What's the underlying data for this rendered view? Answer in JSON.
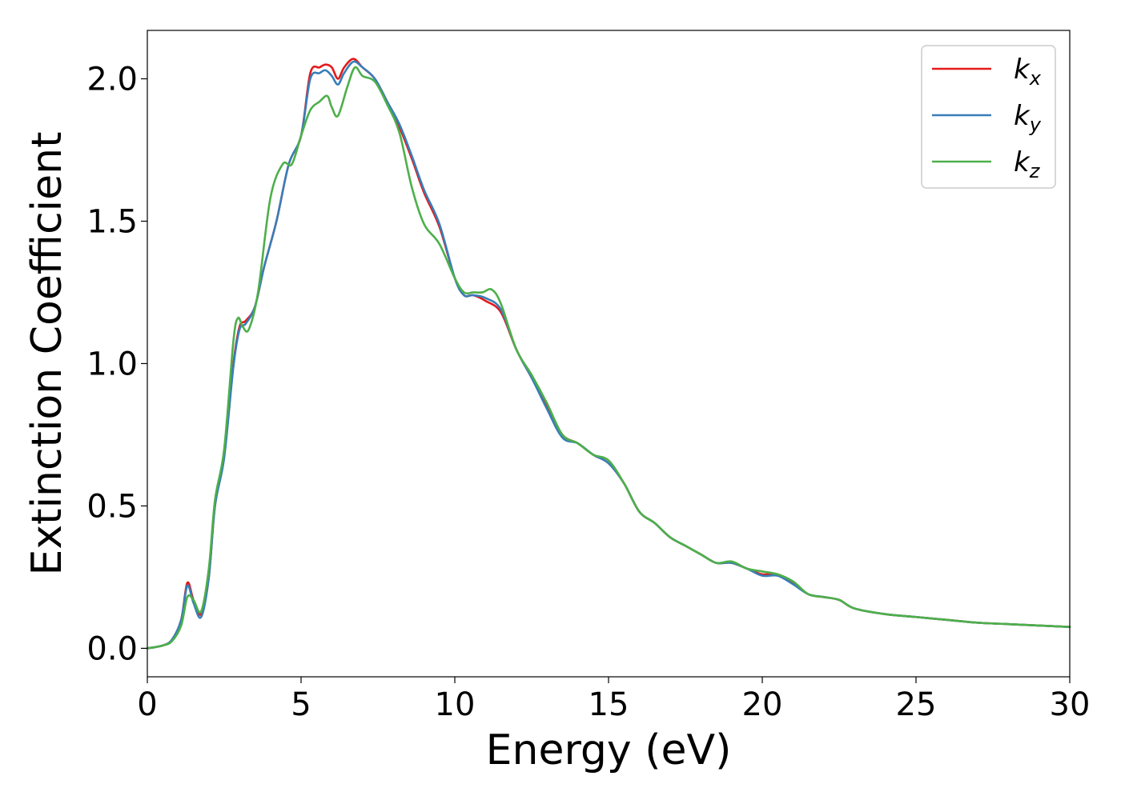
{
  "chart_data": {
    "type": "line",
    "title": "",
    "xlabel": "Energy (eV)",
    "ylabel": "Extinction Coefficient",
    "xlim": [
      0,
      30
    ],
    "ylim": [
      -0.1,
      2.17
    ],
    "xticks": [
      0,
      5,
      10,
      15,
      20,
      25,
      30
    ],
    "xtick_labels": [
      "0",
      "5",
      "10",
      "15",
      "20",
      "25",
      "30"
    ],
    "yticks": [
      0.0,
      0.5,
      1.0,
      1.5,
      2.0
    ],
    "ytick_labels": [
      "0.0",
      "0.5",
      "1.0",
      "1.5",
      "2.0"
    ],
    "grid": false,
    "legend_position": "top-right",
    "series": [
      {
        "name": "k_x",
        "color": "#e41a1c",
        "points": [
          [
            0,
            0
          ],
          [
            0.5,
            0.01
          ],
          [
            0.8,
            0.03
          ],
          [
            1.1,
            0.1
          ],
          [
            1.3,
            0.23
          ],
          [
            1.5,
            0.17
          ],
          [
            1.75,
            0.12
          ],
          [
            2.0,
            0.25
          ],
          [
            2.2,
            0.5
          ],
          [
            2.5,
            0.68
          ],
          [
            2.8,
            1.0
          ],
          [
            3.0,
            1.13
          ],
          [
            3.2,
            1.15
          ],
          [
            3.5,
            1.2
          ],
          [
            3.8,
            1.34
          ],
          [
            4.2,
            1.5
          ],
          [
            4.6,
            1.7
          ],
          [
            5.0,
            1.8
          ],
          [
            5.3,
            2.02
          ],
          [
            5.6,
            2.04
          ],
          [
            5.8,
            2.05
          ],
          [
            6.0,
            2.04
          ],
          [
            6.2,
            2.0
          ],
          [
            6.4,
            2.04
          ],
          [
            6.7,
            2.07
          ],
          [
            7.0,
            2.04
          ],
          [
            7.4,
            2.0
          ],
          [
            7.8,
            1.92
          ],
          [
            8.2,
            1.83
          ],
          [
            8.6,
            1.72
          ],
          [
            9.0,
            1.6
          ],
          [
            9.5,
            1.48
          ],
          [
            10.0,
            1.3
          ],
          [
            10.3,
            1.24
          ],
          [
            10.6,
            1.24
          ],
          [
            11.0,
            1.22
          ],
          [
            11.5,
            1.18
          ],
          [
            12.0,
            1.05
          ],
          [
            12.5,
            0.95
          ],
          [
            13.0,
            0.85
          ],
          [
            13.5,
            0.75
          ],
          [
            14.0,
            0.72
          ],
          [
            14.5,
            0.68
          ],
          [
            15.0,
            0.65
          ],
          [
            15.5,
            0.58
          ],
          [
            16.0,
            0.48
          ],
          [
            16.5,
            0.44
          ],
          [
            17.0,
            0.39
          ],
          [
            17.5,
            0.36
          ],
          [
            18.0,
            0.33
          ],
          [
            18.5,
            0.3
          ],
          [
            19.0,
            0.3
          ],
          [
            19.5,
            0.28
          ],
          [
            20.0,
            0.26
          ],
          [
            20.5,
            0.26
          ],
          [
            21.0,
            0.23
          ],
          [
            21.5,
            0.19
          ],
          [
            22.0,
            0.18
          ],
          [
            22.5,
            0.17
          ],
          [
            23.0,
            0.14
          ],
          [
            24.0,
            0.12
          ],
          [
            25.0,
            0.11
          ],
          [
            26.0,
            0.1
          ],
          [
            27.0,
            0.09
          ],
          [
            28.0,
            0.085
          ],
          [
            29.0,
            0.08
          ],
          [
            30.0,
            0.075
          ]
        ]
      },
      {
        "name": "k_y",
        "color": "#377eb8",
        "points": [
          [
            0,
            0
          ],
          [
            0.5,
            0.01
          ],
          [
            0.8,
            0.03
          ],
          [
            1.1,
            0.1
          ],
          [
            1.3,
            0.22
          ],
          [
            1.5,
            0.16
          ],
          [
            1.75,
            0.11
          ],
          [
            2.0,
            0.25
          ],
          [
            2.2,
            0.5
          ],
          [
            2.5,
            0.67
          ],
          [
            2.8,
            0.99
          ],
          [
            3.0,
            1.12
          ],
          [
            3.2,
            1.14
          ],
          [
            3.5,
            1.2
          ],
          [
            3.8,
            1.34
          ],
          [
            4.2,
            1.5
          ],
          [
            4.6,
            1.7
          ],
          [
            5.0,
            1.8
          ],
          [
            5.3,
            2.0
          ],
          [
            5.6,
            2.02
          ],
          [
            5.8,
            2.03
          ],
          [
            6.0,
            2.01
          ],
          [
            6.2,
            1.98
          ],
          [
            6.4,
            2.02
          ],
          [
            6.7,
            2.06
          ],
          [
            7.0,
            2.04
          ],
          [
            7.4,
            2.0
          ],
          [
            7.8,
            1.92
          ],
          [
            8.2,
            1.84
          ],
          [
            8.6,
            1.73
          ],
          [
            9.0,
            1.61
          ],
          [
            9.5,
            1.49
          ],
          [
            10.0,
            1.3
          ],
          [
            10.3,
            1.24
          ],
          [
            10.6,
            1.24
          ],
          [
            11.0,
            1.23
          ],
          [
            11.5,
            1.19
          ],
          [
            12.0,
            1.05
          ],
          [
            12.5,
            0.95
          ],
          [
            13.0,
            0.84
          ],
          [
            13.5,
            0.74
          ],
          [
            14.0,
            0.72
          ],
          [
            14.5,
            0.68
          ],
          [
            15.0,
            0.65
          ],
          [
            15.5,
            0.58
          ],
          [
            16.0,
            0.48
          ],
          [
            16.5,
            0.44
          ],
          [
            17.0,
            0.39
          ],
          [
            17.5,
            0.36
          ],
          [
            18.0,
            0.33
          ],
          [
            18.5,
            0.3
          ],
          [
            19.0,
            0.3
          ],
          [
            19.5,
            0.28
          ],
          [
            20.0,
            0.255
          ],
          [
            20.5,
            0.255
          ],
          [
            21.0,
            0.225
          ],
          [
            21.5,
            0.19
          ],
          [
            22.0,
            0.18
          ],
          [
            22.5,
            0.17
          ],
          [
            23.0,
            0.14
          ],
          [
            24.0,
            0.12
          ],
          [
            25.0,
            0.11
          ],
          [
            26.0,
            0.1
          ],
          [
            27.0,
            0.09
          ],
          [
            28.0,
            0.085
          ],
          [
            29.0,
            0.08
          ],
          [
            30.0,
            0.075
          ]
        ]
      },
      {
        "name": "k_z",
        "color": "#4daf4a",
        "points": [
          [
            0,
            0
          ],
          [
            0.5,
            0.01
          ],
          [
            0.8,
            0.025
          ],
          [
            1.1,
            0.08
          ],
          [
            1.3,
            0.18
          ],
          [
            1.5,
            0.17
          ],
          [
            1.75,
            0.13
          ],
          [
            2.0,
            0.28
          ],
          [
            2.2,
            0.52
          ],
          [
            2.5,
            0.7
          ],
          [
            2.8,
            1.08
          ],
          [
            2.95,
            1.16
          ],
          [
            3.1,
            1.13
          ],
          [
            3.3,
            1.12
          ],
          [
            3.6,
            1.25
          ],
          [
            4.0,
            1.58
          ],
          [
            4.4,
            1.7
          ],
          [
            4.7,
            1.7
          ],
          [
            5.0,
            1.8
          ],
          [
            5.3,
            1.89
          ],
          [
            5.6,
            1.92
          ],
          [
            5.85,
            1.94
          ],
          [
            6.0,
            1.9
          ],
          [
            6.2,
            1.87
          ],
          [
            6.5,
            1.97
          ],
          [
            6.75,
            2.04
          ],
          [
            7.0,
            2.01
          ],
          [
            7.4,
            1.99
          ],
          [
            7.8,
            1.91
          ],
          [
            8.2,
            1.81
          ],
          [
            8.6,
            1.62
          ],
          [
            9.0,
            1.49
          ],
          [
            9.5,
            1.42
          ],
          [
            10.0,
            1.3
          ],
          [
            10.3,
            1.25
          ],
          [
            10.6,
            1.25
          ],
          [
            10.9,
            1.25
          ],
          [
            11.2,
            1.26
          ],
          [
            11.5,
            1.21
          ],
          [
            12.0,
            1.05
          ],
          [
            12.5,
            0.96
          ],
          [
            13.0,
            0.86
          ],
          [
            13.5,
            0.75
          ],
          [
            14.0,
            0.72
          ],
          [
            14.5,
            0.68
          ],
          [
            15.0,
            0.66
          ],
          [
            15.5,
            0.58
          ],
          [
            16.0,
            0.48
          ],
          [
            16.5,
            0.44
          ],
          [
            17.0,
            0.39
          ],
          [
            17.5,
            0.36
          ],
          [
            18.0,
            0.33
          ],
          [
            18.5,
            0.3
          ],
          [
            19.0,
            0.305
          ],
          [
            19.5,
            0.28
          ],
          [
            20.0,
            0.27
          ],
          [
            20.5,
            0.26
          ],
          [
            21.0,
            0.235
          ],
          [
            21.5,
            0.19
          ],
          [
            22.0,
            0.18
          ],
          [
            22.5,
            0.17
          ],
          [
            23.0,
            0.14
          ],
          [
            24.0,
            0.12
          ],
          [
            25.0,
            0.11
          ],
          [
            26.0,
            0.1
          ],
          [
            27.0,
            0.09
          ],
          [
            28.0,
            0.085
          ],
          [
            29.0,
            0.08
          ],
          [
            30.0,
            0.075
          ]
        ]
      }
    ],
    "legend": [
      {
        "base": "k",
        "sub": "x",
        "color": "#e41a1c"
      },
      {
        "base": "k",
        "sub": "y",
        "color": "#377eb8"
      },
      {
        "base": "k",
        "sub": "z",
        "color": "#4daf4a"
      }
    ]
  }
}
